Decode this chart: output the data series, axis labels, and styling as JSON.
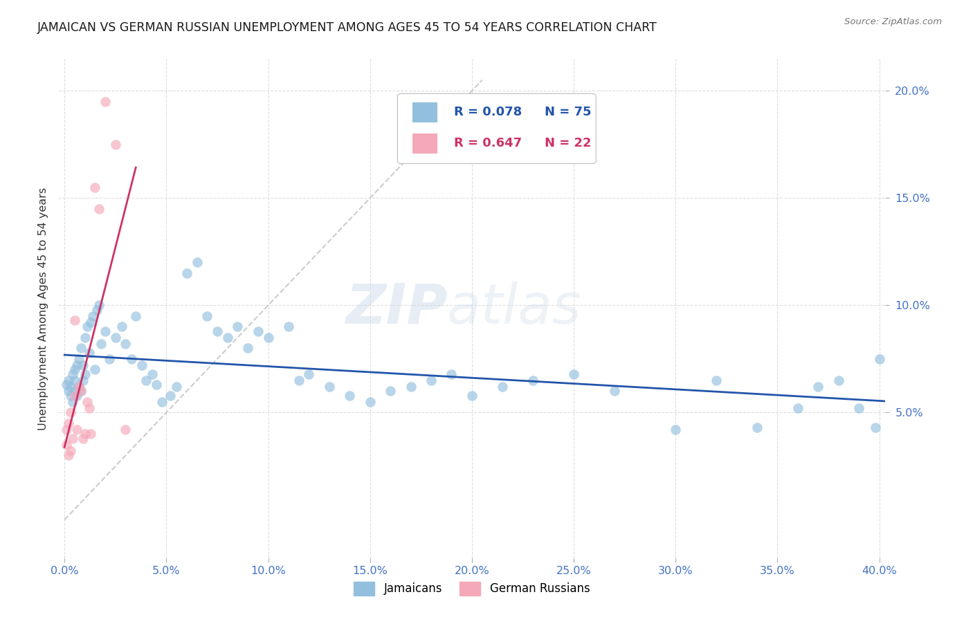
{
  "title": "JAMAICAN VS GERMAN RUSSIAN UNEMPLOYMENT AMONG AGES 45 TO 54 YEARS CORRELATION CHART",
  "source": "Source: ZipAtlas.com",
  "ylabel": "Unemployment Among Ages 45 to 54 years",
  "xlim": [
    -0.003,
    0.403
  ],
  "ylim": [
    -0.018,
    0.215
  ],
  "xticks": [
    0.0,
    0.05,
    0.1,
    0.15,
    0.2,
    0.25,
    0.3,
    0.35,
    0.4
  ],
  "yticks": [
    0.05,
    0.1,
    0.15,
    0.2
  ],
  "bg_color": "#ffffff",
  "grid_color": "#dddddd",
  "jam_color": "#92bfde",
  "ger_color": "#f4a8b8",
  "jam_line_color": "#2255aa",
  "ger_line_color": "#cc3366",
  "ref_line_color": "#cccccc",
  "axis_tick_color": "#4472c4",
  "title_color": "#1a1a1a",
  "R_jam": "0.078",
  "N_jam": "75",
  "R_ger": "0.647",
  "N_ger": "22",
  "jam_label": "Jamaicans",
  "ger_label": "German Russians",
  "jamaicans_x": [
    0.001,
    0.002,
    0.002,
    0.003,
    0.003,
    0.004,
    0.004,
    0.005,
    0.005,
    0.005,
    0.006,
    0.006,
    0.007,
    0.007,
    0.008,
    0.008,
    0.009,
    0.009,
    0.01,
    0.01,
    0.011,
    0.012,
    0.013,
    0.014,
    0.015,
    0.016,
    0.017,
    0.018,
    0.02,
    0.022,
    0.025,
    0.028,
    0.03,
    0.033,
    0.035,
    0.038,
    0.04,
    0.043,
    0.045,
    0.048,
    0.052,
    0.055,
    0.06,
    0.065,
    0.07,
    0.075,
    0.08,
    0.085,
    0.09,
    0.095,
    0.1,
    0.11,
    0.115,
    0.12,
    0.13,
    0.14,
    0.15,
    0.16,
    0.17,
    0.18,
    0.19,
    0.2,
    0.215,
    0.23,
    0.25,
    0.27,
    0.3,
    0.32,
    0.34,
    0.36,
    0.37,
    0.38,
    0.39,
    0.398,
    0.4
  ],
  "jamaicans_y": [
    0.063,
    0.06,
    0.065,
    0.058,
    0.062,
    0.055,
    0.068,
    0.06,
    0.065,
    0.07,
    0.058,
    0.072,
    0.062,
    0.075,
    0.06,
    0.08,
    0.065,
    0.072,
    0.068,
    0.085,
    0.09,
    0.078,
    0.092,
    0.095,
    0.07,
    0.098,
    0.1,
    0.082,
    0.088,
    0.075,
    0.085,
    0.09,
    0.082,
    0.075,
    0.095,
    0.072,
    0.065,
    0.068,
    0.063,
    0.055,
    0.058,
    0.062,
    0.115,
    0.12,
    0.095,
    0.088,
    0.085,
    0.09,
    0.08,
    0.088,
    0.085,
    0.09,
    0.065,
    0.068,
    0.062,
    0.058,
    0.055,
    0.06,
    0.062,
    0.065,
    0.068,
    0.058,
    0.062,
    0.065,
    0.068,
    0.06,
    0.042,
    0.065,
    0.043,
    0.052,
    0.062,
    0.065,
    0.052,
    0.043,
    0.075
  ],
  "german_russians_x": [
    0.001,
    0.001,
    0.002,
    0.002,
    0.003,
    0.003,
    0.004,
    0.005,
    0.005,
    0.006,
    0.007,
    0.008,
    0.009,
    0.01,
    0.011,
    0.012,
    0.013,
    0.015,
    0.017,
    0.02,
    0.025,
    0.03
  ],
  "german_russians_y": [
    0.035,
    0.042,
    0.03,
    0.045,
    0.032,
    0.05,
    0.038,
    0.058,
    0.093,
    0.042,
    0.062,
    0.06,
    0.038,
    0.04,
    0.055,
    0.052,
    0.04,
    0.155,
    0.145,
    0.195,
    0.175,
    0.042
  ],
  "ref_line_x": [
    0.0,
    0.205
  ],
  "ref_line_y": [
    0.0,
    0.205
  ],
  "jam_trend_x": [
    0.0,
    0.403
  ],
  "ger_trend_x": [
    0.0,
    0.035
  ]
}
